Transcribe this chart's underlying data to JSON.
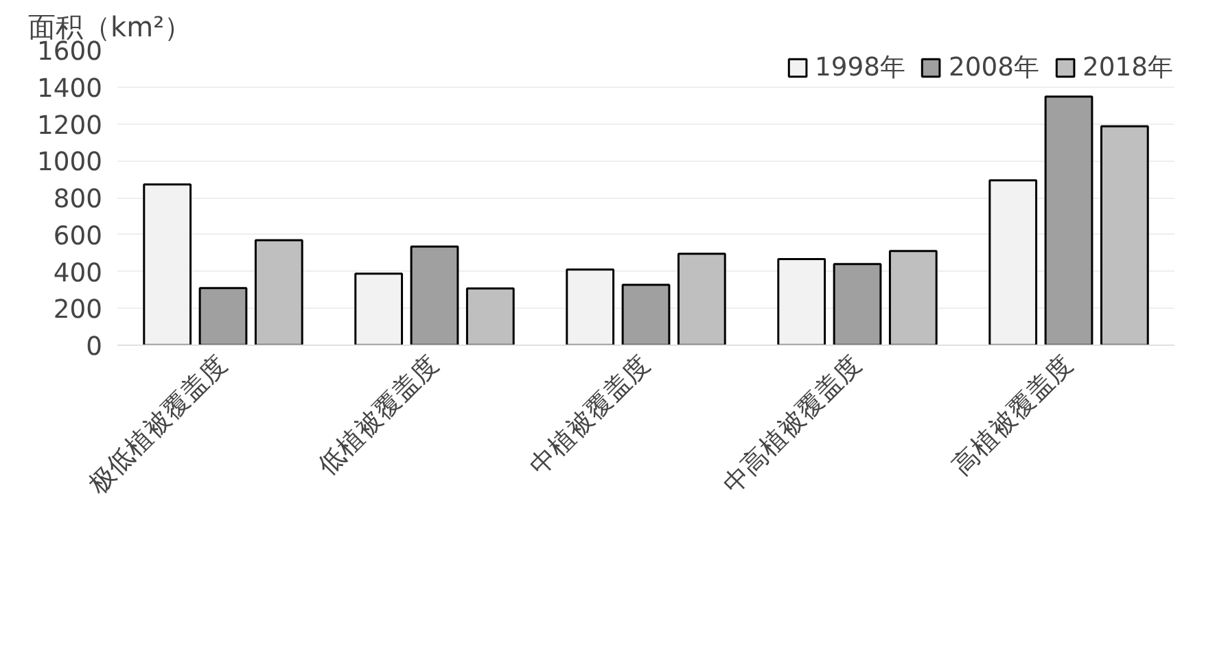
{
  "chart_data": {
    "type": "bar",
    "ylabel": "面积（km²）",
    "categories": [
      "极低植被覆盖度",
      "低植被覆盖度",
      "中植被覆盖度",
      "中高植被覆盖度",
      "高植被覆盖度"
    ],
    "series": [
      {
        "name": "1998年",
        "color": "#f2f2f2",
        "values": [
          872,
          388,
          410,
          467,
          894
        ]
      },
      {
        "name": "2008年",
        "color": "#a0a0a0",
        "values": [
          310,
          535,
          327,
          440,
          1348
        ]
      },
      {
        "name": "2018年",
        "color": "#bfbfbf",
        "values": [
          569,
          308,
          496,
          511,
          1187
        ]
      }
    ],
    "ylim": [
      0,
      1600
    ],
    "yticks": [
      0,
      200,
      400,
      600,
      800,
      1000,
      1200,
      1400,
      1600
    ],
    "grid": "y",
    "legend": "top right"
  }
}
